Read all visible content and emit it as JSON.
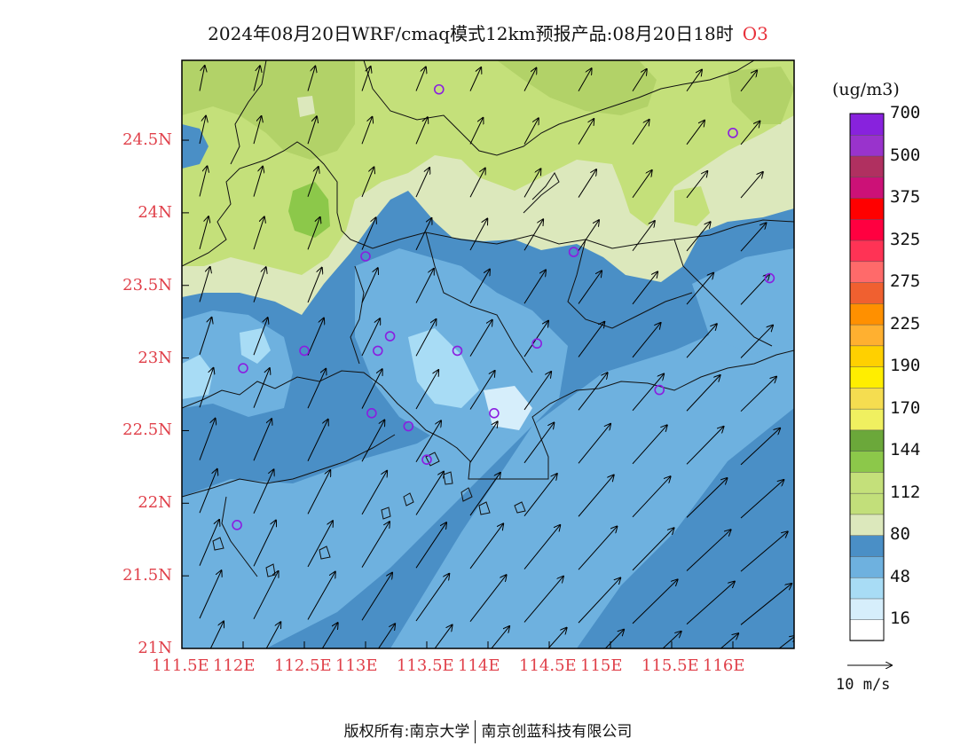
{
  "title": {
    "main": "2024年08月20日WRF/cmaq模式12km预报产品:08月20日18时",
    "pollutant": "O3"
  },
  "lat_labels": [
    "24.5N",
    "24N",
    "23.5N",
    "23N",
    "22.5N",
    "22N",
    "21.5N",
    "21N"
  ],
  "lat_values": [
    24.5,
    24,
    23.5,
    23,
    22.5,
    22,
    21.5,
    21
  ],
  "lon_labels": [
    "111.5E",
    "112E",
    "112.5E",
    "113E",
    "113.5E",
    "114E",
    "114.5E",
    "115E",
    "115.5E",
    "116E"
  ],
  "lon_values": [
    111.5,
    112,
    112.5,
    113,
    113.5,
    114,
    114.5,
    115,
    115.5,
    116
  ],
  "map_extent": {
    "lon": [
      111.5,
      116.5
    ],
    "lat": [
      21,
      25.05
    ]
  },
  "colorbar": {
    "unit": "(ug/m3)",
    "colors": [
      "#ffffff",
      "#d6eefb",
      "#a8dcf5",
      "#6eb1df",
      "#4a8fc6",
      "#dce8bc",
      "#c2df7a",
      "#c4e07a",
      "#8cc84a",
      "#6ba83a",
      "#f0f060",
      "#f5dd50",
      "#ffee00",
      "#ffd000",
      "#ffb030",
      "#ff9000",
      "#f06030",
      "#ff6a6a",
      "#ff3355",
      "#ff0040",
      "#ff0000",
      "#cc1177",
      "#b03060",
      "#9933cc",
      "#8822dd"
    ],
    "labels": [
      "16",
      "48",
      "80",
      "112",
      "144",
      "170",
      "190",
      "225",
      "275",
      "325",
      "375",
      "500",
      "700"
    ]
  },
  "reference_vector": {
    "label": "10 m/s"
  },
  "footer": {
    "left": "版权所有:南京大学",
    "right": "南京创蓝科技有限公司"
  },
  "stations": [
    [
      113.6,
      24.85
    ],
    [
      116.0,
      24.55
    ],
    [
      113.0,
      23.7
    ],
    [
      114.7,
      23.73
    ],
    [
      116.3,
      23.55
    ],
    [
      112.5,
      23.05
    ],
    [
      113.2,
      23.15
    ],
    [
      113.1,
      23.05
    ],
    [
      113.75,
      23.05
    ],
    [
      114.4,
      23.1
    ],
    [
      112.0,
      22.93
    ],
    [
      115.4,
      22.78
    ],
    [
      113.05,
      22.62
    ],
    [
      113.35,
      22.53
    ],
    [
      114.05,
      22.62
    ],
    [
      113.5,
      22.3
    ],
    [
      111.95,
      21.85
    ]
  ]
}
